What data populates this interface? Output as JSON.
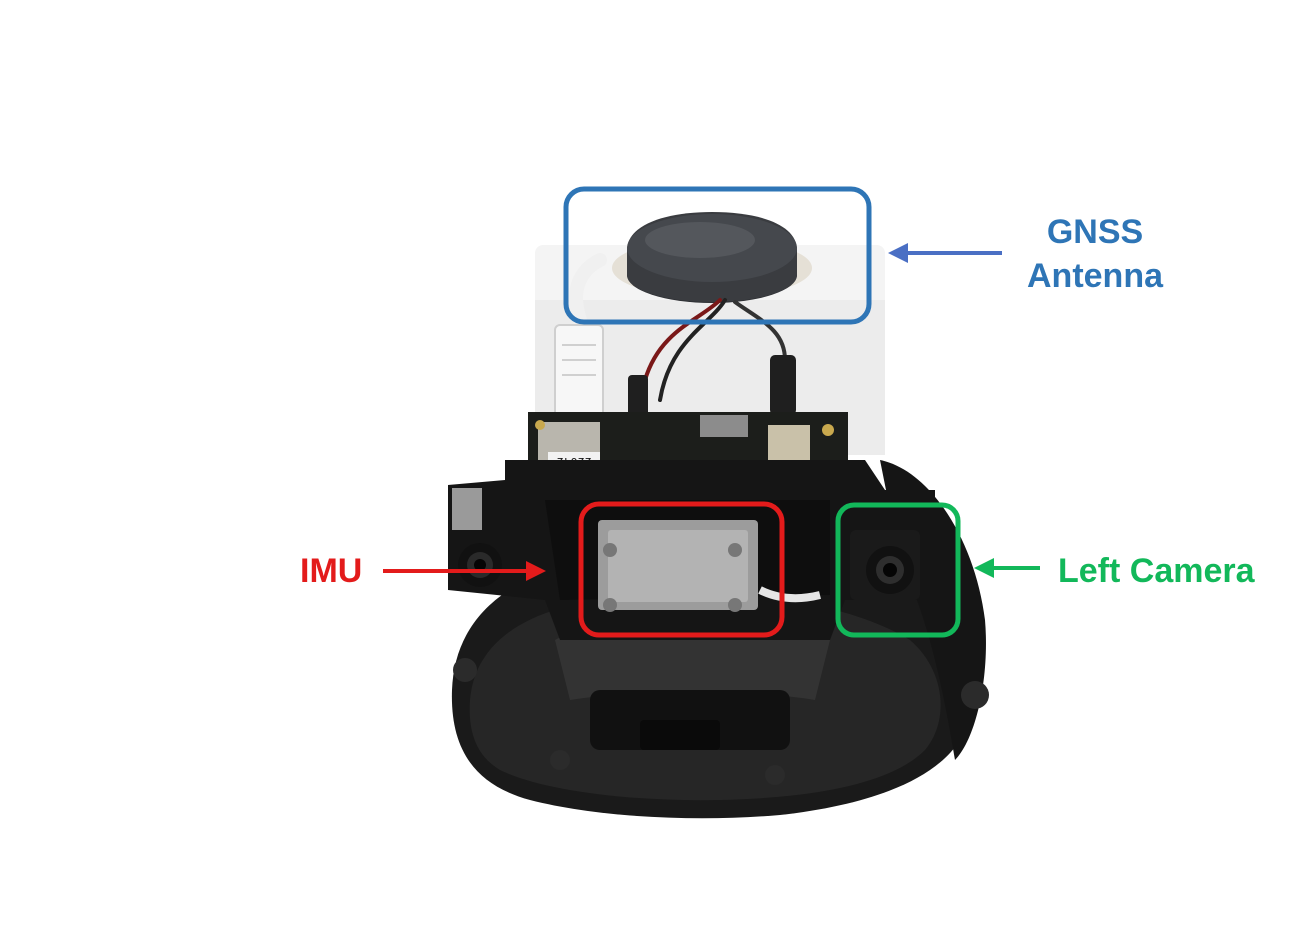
{
  "colors": {
    "gnss": "#2e75b6",
    "imu": "#e31b1b",
    "camera": "#12b85a",
    "background": "#ffffff"
  },
  "annotations": {
    "gnss": {
      "line1": "GNSS",
      "line2": "Antenna",
      "color_key": "gnss"
    },
    "imu": {
      "text": "IMU",
      "color_key": "imu"
    },
    "camera": {
      "text": "Left Camera",
      "color_key": "camera"
    }
  },
  "device_markings": {
    "board_serial": "22042"
  }
}
